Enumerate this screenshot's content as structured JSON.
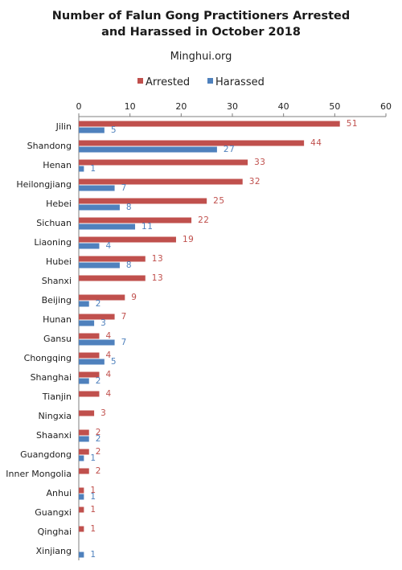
{
  "chart_data": {
    "type": "bar",
    "orientation": "horizontal",
    "title": [
      "Number of Falun Gong Practitioners Arrested",
      "and Harassed in October 2018"
    ],
    "subtitle": "Minghui.org",
    "legend_position": "top",
    "xlim": [
      0,
      60
    ],
    "x_ticks": [
      "0",
      "10",
      "20",
      "30",
      "40",
      "50",
      "60"
    ],
    "categories": [
      "Jilin",
      "Shandong",
      "Henan",
      "Heilongjiang",
      "Hebei",
      "Sichuan",
      "Liaoning",
      "Hubei",
      "Shanxi",
      "Beijing",
      "Hunan",
      "Gansu",
      "Chongqing",
      "Shanghai",
      "Tianjin",
      "Ningxia",
      "Shaanxi",
      "Guangdong",
      "Inner Mongolia",
      "Anhui",
      "Guangxi",
      "Qinghai",
      "Xinjiang"
    ],
    "series": [
      {
        "name": "Arrested",
        "color": "#c0504d",
        "values": [
          51,
          44,
          33,
          32,
          25,
          22,
          19,
          13,
          13,
          9,
          7,
          4,
          4,
          4,
          4,
          3,
          2,
          2,
          2,
          1,
          1,
          1,
          null
        ]
      },
      {
        "name": "Harassed",
        "color": "#4f81bd",
        "values": [
          5,
          27,
          1,
          7,
          8,
          11,
          4,
          8,
          null,
          2,
          3,
          7,
          5,
          2,
          null,
          null,
          2,
          1,
          null,
          1,
          null,
          null,
          1
        ]
      }
    ]
  }
}
